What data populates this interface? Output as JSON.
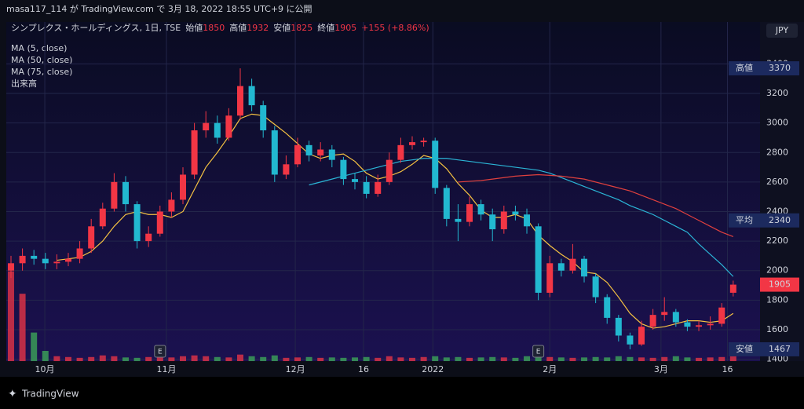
{
  "chart_data": {
    "type": "candlestick",
    "published": "masa117_114 が TradingView.com で 3月 18, 2022 18:55 UTC+9 に公開",
    "symbol": "シンプレクス・ホールディングス, 1日, TSE",
    "ohlc": [
      {
        "label": "始値",
        "value": 1850
      },
      {
        "label": "高値",
        "value": 1932
      },
      {
        "label": "安値",
        "value": 1825
      },
      {
        "label": "終値",
        "value": 1905
      }
    ],
    "change": "+155 (+8.86%)",
    "currency": "JPY",
    "brand": "TradingView",
    "volume_label": "出来高",
    "open": [
      2000,
      2050,
      2100,
      2080,
      2050,
      2060,
      2080,
      2150,
      2300,
      2420,
      2600,
      2450,
      2200,
      2250,
      2400,
      2480,
      2650,
      2950,
      3000,
      2900,
      3050,
      3250,
      3120,
      2950,
      2650,
      2720,
      2850,
      2780,
      2820,
      2750,
      2620,
      2600,
      2520,
      2600,
      2750,
      2850,
      2870,
      2880,
      2560,
      2350,
      2330,
      2450,
      2380,
      2280,
      2400,
      2380,
      2300,
      1850,
      2050,
      2000,
      2080,
      1960,
      1820,
      1680,
      1560,
      1500,
      1620,
      1700,
      1720,
      1650,
      1620,
      1630,
      1640,
      1850
    ],
    "high": [
      2100,
      2150,
      2140,
      2120,
      2110,
      2120,
      2200,
      2350,
      2460,
      2660,
      2640,
      2470,
      2300,
      2440,
      2530,
      2700,
      3000,
      3080,
      3050,
      3100,
      3370,
      3300,
      3150,
      2980,
      2780,
      2900,
      2880,
      2870,
      2850,
      2770,
      2660,
      2640,
      2650,
      2800,
      2900,
      2910,
      2900,
      2900,
      2580,
      2450,
      2500,
      2480,
      2420,
      2440,
      2440,
      2420,
      2320,
      2100,
      2080,
      2180,
      2100,
      1980,
      1840,
      1700,
      1580,
      1660,
      1740,
      1820,
      1740,
      1670,
      1660,
      1690,
      1780,
      1932
    ],
    "low": [
      1950,
      2000,
      2040,
      2010,
      2010,
      2030,
      2050,
      2120,
      2280,
      2400,
      2400,
      2150,
      2160,
      2230,
      2360,
      2450,
      2620,
      2900,
      2860,
      2880,
      3020,
      3080,
      2900,
      2600,
      2620,
      2700,
      2740,
      2740,
      2700,
      2580,
      2550,
      2490,
      2500,
      2580,
      2730,
      2820,
      2840,
      2520,
      2300,
      2200,
      2300,
      2340,
      2200,
      2250,
      2340,
      2250,
      1800,
      1820,
      1960,
      1980,
      1920,
      1780,
      1640,
      1520,
      1467,
      1490,
      1600,
      1660,
      1620,
      1590,
      1590,
      1600,
      1620,
      1825
    ],
    "close": [
      2050,
      2100,
      2080,
      2050,
      2060,
      2080,
      2150,
      2300,
      2420,
      2600,
      2450,
      2200,
      2250,
      2400,
      2480,
      2650,
      2950,
      3000,
      2900,
      3050,
      3250,
      3120,
      2950,
      2650,
      2720,
      2850,
      2780,
      2820,
      2750,
      2620,
      2600,
      2520,
      2600,
      2750,
      2850,
      2870,
      2880,
      2560,
      2350,
      2330,
      2450,
      2380,
      2280,
      2400,
      2380,
      2300,
      1850,
      2050,
      2000,
      2080,
      1960,
      1820,
      1680,
      1560,
      1500,
      1620,
      1700,
      1720,
      1650,
      1620,
      1630,
      1640,
      1750,
      1905
    ],
    "volume": [
      220,
      165,
      70,
      25,
      12,
      10,
      8,
      10,
      14,
      12,
      9,
      8,
      10,
      10,
      9,
      12,
      14,
      12,
      10,
      9,
      16,
      12,
      10,
      14,
      8,
      9,
      10,
      8,
      9,
      8,
      9,
      10,
      8,
      12,
      9,
      8,
      10,
      12,
      9,
      10,
      8,
      9,
      10,
      9,
      8,
      12,
      16,
      10,
      9,
      8,
      9,
      10,
      9,
      12,
      10,
      9,
      8,
      10,
      12,
      9,
      8,
      9,
      10,
      12
    ],
    "vlim": [
      0,
      250
    ],
    "up_color": "#f23645",
    "down_color": "#22b8d0",
    "series": [
      {
        "name": "MA (5, close)",
        "color": "#f5c242",
        "values": [
          null,
          null,
          null,
          null,
          2070,
          2080,
          2090,
          2130,
          2200,
          2300,
          2380,
          2400,
          2380,
          2380,
          2360,
          2400,
          2550,
          2700,
          2800,
          2910,
          3030,
          3060,
          3050,
          2990,
          2930,
          2860,
          2790,
          2760,
          2780,
          2790,
          2740,
          2660,
          2620,
          2640,
          2670,
          2720,
          2780,
          2760,
          2690,
          2590,
          2510,
          2410,
          2360,
          2360,
          2380,
          2350,
          2240,
          2170,
          2110,
          2060,
          1990,
          1980,
          1920,
          1820,
          1710,
          1640,
          1610,
          1620,
          1640,
          1660,
          1660,
          1650,
          1660,
          1710
        ]
      },
      {
        "name": "MA (50, close)",
        "color": "#2bb5d6",
        "values": [
          null,
          null,
          null,
          null,
          null,
          null,
          null,
          null,
          null,
          null,
          null,
          null,
          null,
          null,
          null,
          null,
          null,
          null,
          null,
          null,
          null,
          null,
          null,
          null,
          null,
          null,
          2580,
          2600,
          2620,
          2640,
          2660,
          2680,
          2700,
          2720,
          2740,
          2750,
          2760,
          2760,
          2760,
          2750,
          2740,
          2730,
          2720,
          2710,
          2700,
          2690,
          2680,
          2660,
          2630,
          2600,
          2570,
          2540,
          2510,
          2480,
          2440,
          2410,
          2380,
          2340,
          2300,
          2260,
          2180,
          2110,
          2040,
          1960
        ]
      },
      {
        "name": "MA (75, close)",
        "color": "#e0403e",
        "values": [
          null,
          null,
          null,
          null,
          null,
          null,
          null,
          null,
          null,
          null,
          null,
          null,
          null,
          null,
          null,
          null,
          null,
          null,
          null,
          null,
          null,
          null,
          null,
          null,
          null,
          null,
          null,
          null,
          null,
          null,
          null,
          null,
          null,
          null,
          null,
          null,
          null,
          null,
          null,
          2600,
          2605,
          2610,
          2620,
          2630,
          2640,
          2645,
          2650,
          2645,
          2640,
          2630,
          2620,
          2600,
          2580,
          2560,
          2540,
          2510,
          2480,
          2450,
          2420,
          2380,
          2340,
          2300,
          2260,
          2230
        ]
      }
    ],
    "ylim": [
      1387,
      3684
    ],
    "yticks": [
      1400,
      1600,
      1800,
      2000,
      2200,
      2400,
      2600,
      2800,
      3000,
      3200,
      3400
    ],
    "xlim": [
      -0.41,
      65.34
    ],
    "xticks": [
      {
        "value": 2.95,
        "label": "10月"
      },
      {
        "value": 13.56,
        "label": "11月"
      },
      {
        "value": 24.8,
        "label": "12月"
      },
      {
        "value": 30.75,
        "label": "16"
      },
      {
        "value": 36.8,
        "label": "2022"
      },
      {
        "value": 47,
        "label": "2月"
      },
      {
        "value": 56.7,
        "label": "3月"
      },
      {
        "value": 62.5,
        "label": "16"
      }
    ],
    "events": [
      {
        "index": 13,
        "label": "E"
      },
      {
        "index": 46,
        "label": "E"
      }
    ],
    "price_labels": [
      {
        "label": "高値",
        "value": 3370
      },
      {
        "label": "平均",
        "value": 2340
      },
      {
        "label": "安値",
        "value": 1467
      }
    ],
    "last_price": 1905,
    "grid": true
  }
}
